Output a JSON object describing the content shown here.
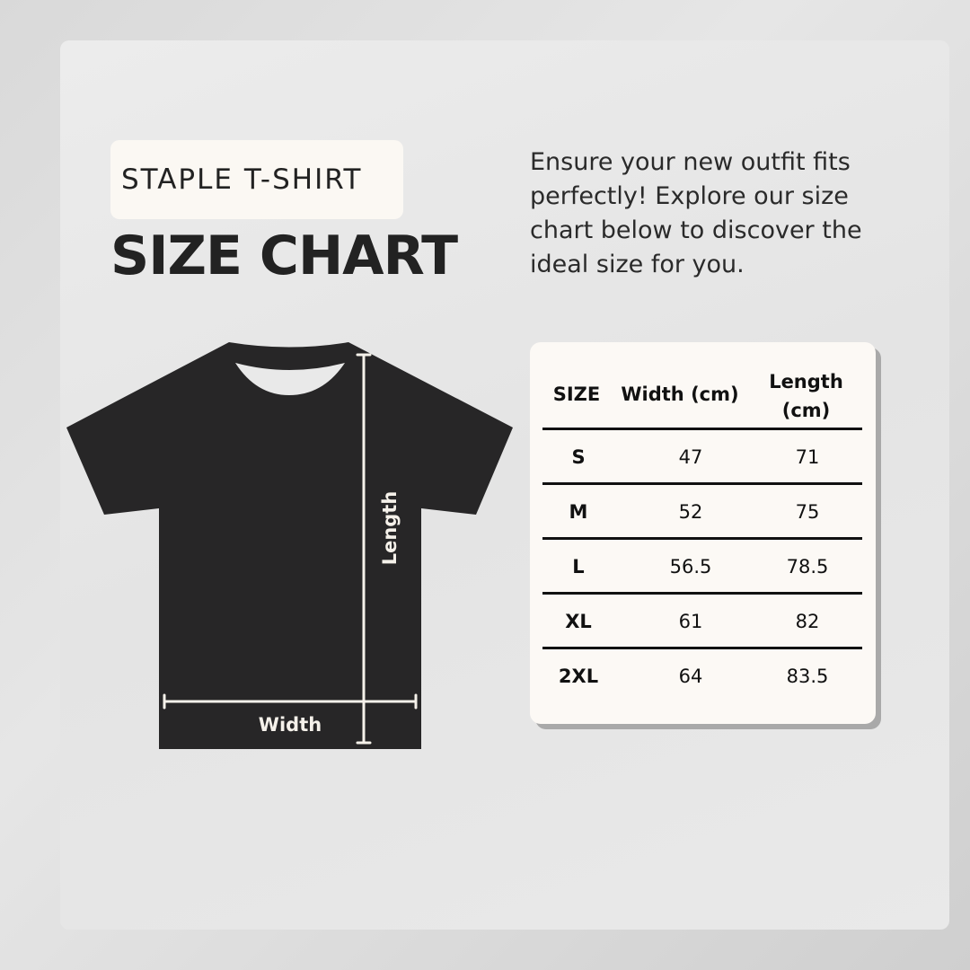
{
  "header": {
    "tag": "STAPLE T-SHIRT",
    "title": "SIZE CHART"
  },
  "description": "Ensure your new outfit fits perfectly! Explore our size chart below to discover the ideal size for you.",
  "diagram": {
    "length_label": "Length",
    "width_label": "Width"
  },
  "table": {
    "headers": [
      "SIZE",
      "Width (cm)",
      "Length (cm)"
    ],
    "rows": [
      [
        "S",
        "47",
        "71"
      ],
      [
        "M",
        "52",
        "75"
      ],
      [
        "L",
        "56.5",
        "78.5"
      ],
      [
        "XL",
        "61",
        "82"
      ],
      [
        "2XL",
        "64",
        "83.5"
      ]
    ]
  },
  "colors": {
    "shirt": "#272627",
    "card": "#fcf9f5",
    "text": "#222222"
  }
}
